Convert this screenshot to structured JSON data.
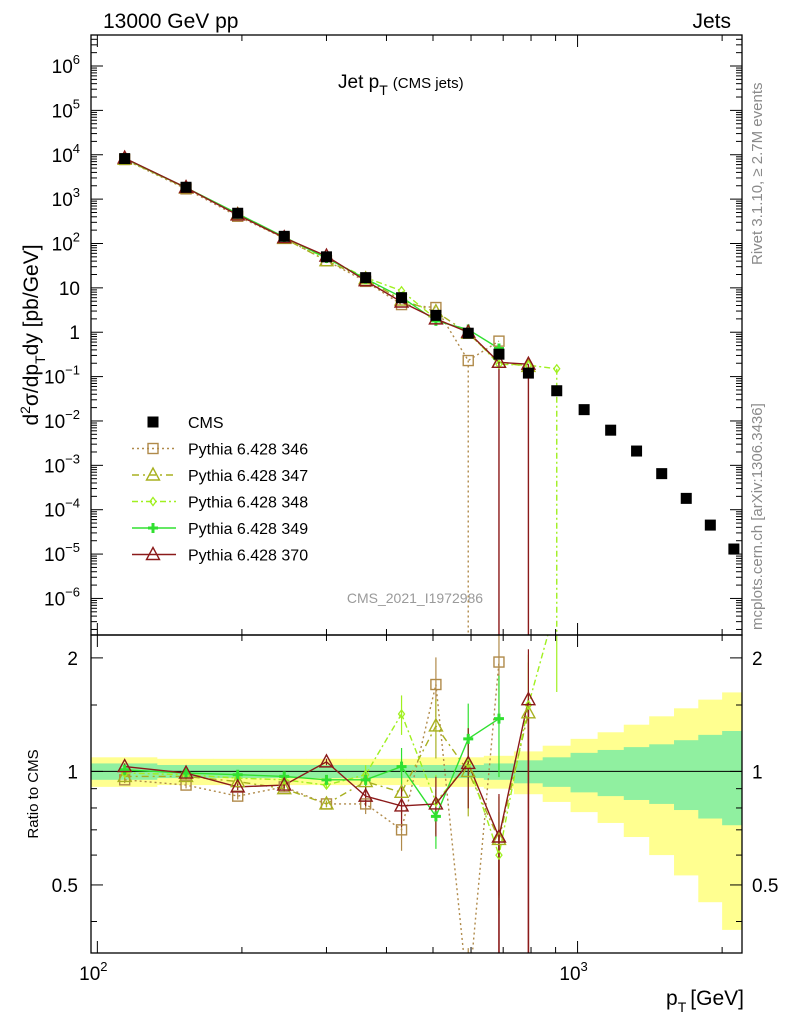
{
  "header": {
    "energy_label": "13000 GeV pp",
    "category_label": "Jets"
  },
  "side_text": {
    "rivet": "Rivet 3.1.10, ≥ 2.7M events",
    "mcplots": "mcplots.cern.ch [arXiv:1306.3436]"
  },
  "colors": {
    "cms": "#000000",
    "p346": "#b08a4a",
    "p347": "#a8b020",
    "p348": "#a0f020",
    "p349": "#30e030",
    "p370": "#8b1a1a",
    "band_outer": "#ffff90",
    "band_inner": "#90f0a0"
  },
  "chart_data": {
    "type": "line",
    "title_main": "Jet p",
    "title_sub": "T",
    "title_suffix": "(CMS jets)",
    "analysis_id": "CMS_2021_I1972986",
    "upper_panel": {
      "ylabel": "d²σ/dp_T dy [pb/GeV]",
      "yscale": "log",
      "ylim": [
        1.5e-07,
        5000000.0
      ],
      "ytick_labels": [
        {
          "mant": "10",
          "exp": "6"
        },
        {
          "mant": "10",
          "exp": "5"
        },
        {
          "mant": "10",
          "exp": "4"
        },
        {
          "mant": "10",
          "exp": "3"
        },
        {
          "mant": "10",
          "exp": "2"
        },
        {
          "mant": "10",
          "exp": ""
        },
        {
          "mant": "1",
          "exp": ""
        },
        {
          "mant": "10",
          "exp": "−1"
        },
        {
          "mant": "10",
          "exp": "−2"
        },
        {
          "mant": "10",
          "exp": "−3"
        },
        {
          "mant": "10",
          "exp": "−4"
        },
        {
          "mant": "10",
          "exp": "−5"
        },
        {
          "mant": "10",
          "exp": "−6"
        }
      ]
    },
    "lower_panel": {
      "ylabel": "Ratio to CMS",
      "ylim": [
        0.33,
        2.3
      ],
      "ytick_labels": [
        "2",
        "1",
        "0.5"
      ]
    },
    "x_axis": {
      "label": "p_T [GeV]",
      "xscale": "log",
      "xlim": [
        97,
        2200
      ],
      "tick_labels": [
        {
          "mant": "10",
          "exp": "2"
        },
        {
          "mant": "10",
          "exp": "3"
        }
      ]
    },
    "x": [
      114,
      153,
      196,
      245,
      300,
      362,
      430,
      507,
      592,
      686,
      790,
      905,
      1032,
      1172,
      1327,
      1497,
      1684,
      1890,
      2116
    ],
    "band_edges": [
      97,
      133,
      174,
      220,
      272,
      330,
      395,
      468,
      548,
      638,
      737,
      846,
      967,
      1101,
      1248,
      1410,
      1588,
      1784,
      2000,
      2238
    ],
    "band_inner": [
      0.05,
      0.04,
      0.04,
      0.04,
      0.04,
      0.04,
      0.04,
      0.04,
      0.04,
      0.05,
      0.07,
      0.09,
      0.12,
      0.14,
      0.16,
      0.18,
      0.21,
      0.25,
      0.28
    ],
    "band_outer": [
      0.09,
      0.08,
      0.08,
      0.08,
      0.08,
      0.08,
      0.08,
      0.09,
      0.09,
      0.1,
      0.13,
      0.17,
      0.22,
      0.27,
      0.33,
      0.4,
      0.47,
      0.55,
      0.62
    ],
    "series": [
      {
        "name": "CMS",
        "values": [
          8200,
          1850,
          480,
          145,
          50,
          17,
          6.0,
          2.4,
          0.95,
          0.32,
          0.12,
          0.048,
          0.018,
          0.0062,
          0.0021,
          0.00065,
          0.00018,
          4.5e-05,
          1.3e-05
        ],
        "ratio": []
      },
      {
        "name": "Pythia 6.428 346",
        "values": [
          7800,
          1700,
          410,
          132,
          41,
          14,
          4.2,
          3.6,
          0.23,
          0.63,
          null,
          null,
          null,
          null,
          null,
          null,
          null,
          null,
          null
        ],
        "ratio": [
          0.95,
          0.92,
          0.86,
          0.91,
          0.82,
          0.82,
          0.7,
          1.7,
          0.25,
          1.95,
          null,
          null,
          null,
          null,
          null,
          null,
          null,
          null,
          null
        ]
      },
      {
        "name": "Pythia 6.428 347",
        "values": [
          7900,
          1780,
          450,
          130,
          41,
          16,
          5.3,
          2.9,
          0.95,
          0.21,
          0.17,
          null,
          null,
          null,
          null,
          null,
          null,
          null,
          null
        ],
        "ratio": [
          0.97,
          0.97,
          0.94,
          0.9,
          0.82,
          0.94,
          0.88,
          1.32,
          1.0,
          0.66,
          1.43,
          null,
          null,
          null,
          null,
          null,
          null,
          null,
          null
        ]
      },
      {
        "name": "Pythia 6.428 348",
        "values": [
          8100,
          1800,
          460,
          138,
          46,
          17,
          8.6,
          2.0,
          1.0,
          0.19,
          0.18,
          0.15,
          null,
          null,
          null,
          null,
          null,
          null,
          null
        ],
        "ratio": [
          0.99,
          0.98,
          0.96,
          0.95,
          0.92,
          0.98,
          1.42,
          0.83,
          1.05,
          0.6,
          1.5,
          2.8,
          null,
          null,
          null,
          null,
          null,
          null,
          null
        ]
      },
      {
        "name": "Pythia 6.428 349",
        "values": [
          8300,
          1820,
          470,
          140,
          47,
          16,
          6.2,
          1.8,
          1.15,
          0.43,
          null,
          null,
          null,
          null,
          null,
          null,
          null,
          null,
          null
        ],
        "ratio": [
          1.01,
          0.99,
          0.98,
          0.97,
          0.95,
          0.95,
          1.03,
          0.76,
          1.22,
          1.38,
          null,
          null,
          null,
          null,
          null,
          null,
          null,
          null,
          null
        ]
      },
      {
        "name": "Pythia 6.428 370",
        "values": [
          8400,
          1820,
          440,
          135,
          52,
          14.5,
          4.8,
          2.0,
          1.0,
          0.21,
          0.19,
          null,
          null,
          null,
          null,
          null,
          null,
          null,
          null
        ],
        "ratio": [
          1.03,
          0.99,
          0.91,
          0.92,
          1.06,
          0.86,
          0.81,
          0.82,
          1.05,
          0.67,
          1.55,
          null,
          null,
          null,
          null,
          null,
          null,
          null,
          null
        ]
      }
    ]
  }
}
